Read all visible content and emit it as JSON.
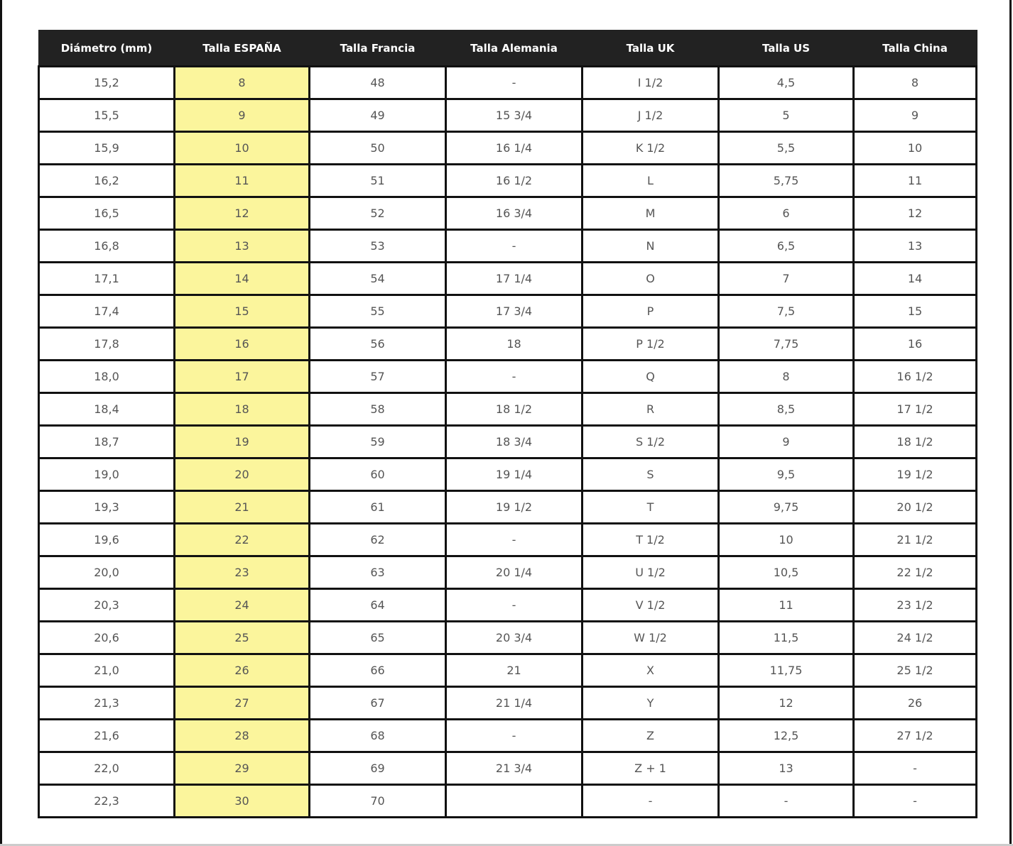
{
  "table": {
    "headers": [
      "Diámetro (mm)",
      "Talla ESPAÑA",
      "Talla Francia",
      "Talla Alemania",
      "Talla UK",
      "Talla US",
      "Talla China"
    ],
    "highlight_color": "#fbf59c",
    "rows": [
      [
        "15,2",
        "8",
        "48",
        "-",
        "I 1/2",
        "4,5",
        "8"
      ],
      [
        "15,5",
        "9",
        "49",
        "15 3/4",
        "J 1/2",
        "5",
        "9"
      ],
      [
        "15,9",
        "10",
        "50",
        "16 1/4",
        "K 1/2",
        "5,5",
        "10"
      ],
      [
        "16,2",
        "11",
        "51",
        "16 1/2",
        "L",
        "5,75",
        "11"
      ],
      [
        "16,5",
        "12",
        "52",
        "16 3/4",
        "M",
        "6",
        "12"
      ],
      [
        "16,8",
        "13",
        "53",
        "-",
        "N",
        "6,5",
        "13"
      ],
      [
        "17,1",
        "14",
        "54",
        "17 1/4",
        "O",
        "7",
        "14"
      ],
      [
        "17,4",
        "15",
        "55",
        "17 3/4",
        "P",
        "7,5",
        "15"
      ],
      [
        "17,8",
        "16",
        "56",
        "18",
        "P 1/2",
        "7,75",
        "16"
      ],
      [
        "18,0",
        "17",
        "57",
        "-",
        "Q",
        "8",
        "16 1/2"
      ],
      [
        "18,4",
        "18",
        "58",
        "18 1/2",
        "R",
        "8,5",
        "17 1/2"
      ],
      [
        "18,7",
        "19",
        "59",
        "18 3/4",
        "S 1/2",
        "9",
        "18 1/2"
      ],
      [
        "19,0",
        "20",
        "60",
        "19 1/4",
        "S",
        "9,5",
        "19 1/2"
      ],
      [
        "19,3",
        "21",
        "61",
        "19 1/2",
        "T",
        "9,75",
        "20 1/2"
      ],
      [
        "19,6",
        "22",
        "62",
        "-",
        "T 1/2",
        "10",
        "21 1/2"
      ],
      [
        "20,0",
        "23",
        "63",
        "20 1/4",
        "U 1/2",
        "10,5",
        "22 1/2"
      ],
      [
        "20,3",
        "24",
        "64",
        "-",
        "V 1/2",
        "11",
        "23 1/2"
      ],
      [
        "20,6",
        "25",
        "65",
        "20 3/4",
        "W 1/2",
        "11,5",
        "24 1/2"
      ],
      [
        "21,0",
        "26",
        "66",
        "21",
        "X",
        "11,75",
        "25 1/2"
      ],
      [
        "21,3",
        "27",
        "67",
        "21 1/4",
        "Y",
        "12",
        "26"
      ],
      [
        "21,6",
        "28",
        "68",
        "-",
        "Z",
        "12,5",
        "27 1/2"
      ],
      [
        "22,0",
        "29",
        "69",
        "21 3/4",
        "Z + 1",
        "13",
        "-"
      ],
      [
        "22,3",
        "30",
        "70",
        "",
        "-",
        "-",
        "-"
      ]
    ]
  }
}
